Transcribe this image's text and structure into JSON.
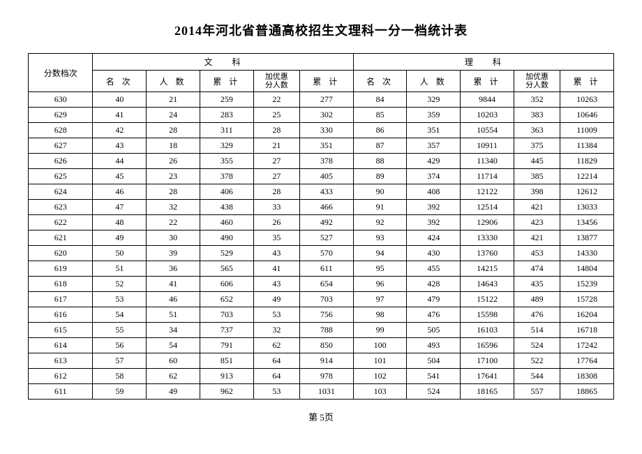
{
  "title": "2014年河北省普通高校招生文理科一分一档统计表",
  "page_label": "第 5页",
  "headers": {
    "score_bracket": "分数档次",
    "liberal": "文科",
    "science": "理科",
    "rank": "名 次",
    "count": "人 数",
    "cumulative": "累 计",
    "bonus_line1": "加优惠",
    "bonus_line2": "分人数",
    "cumulative2": "累 计"
  },
  "rows": [
    {
      "score": 630,
      "l_rank": 40,
      "l_cnt": 21,
      "l_cum": 259,
      "l_bonus": 22,
      "l_cum2": 277,
      "s_rank": 84,
      "s_cnt": 329,
      "s_cum": 9844,
      "s_bonus": 352,
      "s_cum2": 10263
    },
    {
      "score": 629,
      "l_rank": 41,
      "l_cnt": 24,
      "l_cum": 283,
      "l_bonus": 25,
      "l_cum2": 302,
      "s_rank": 85,
      "s_cnt": 359,
      "s_cum": 10203,
      "s_bonus": 383,
      "s_cum2": 10646
    },
    {
      "score": 628,
      "l_rank": 42,
      "l_cnt": 28,
      "l_cum": 311,
      "l_bonus": 28,
      "l_cum2": 330,
      "s_rank": 86,
      "s_cnt": 351,
      "s_cum": 10554,
      "s_bonus": 363,
      "s_cum2": 11009
    },
    {
      "score": 627,
      "l_rank": 43,
      "l_cnt": 18,
      "l_cum": 329,
      "l_bonus": 21,
      "l_cum2": 351,
      "s_rank": 87,
      "s_cnt": 357,
      "s_cum": 10911,
      "s_bonus": 375,
      "s_cum2": 11384
    },
    {
      "score": 626,
      "l_rank": 44,
      "l_cnt": 26,
      "l_cum": 355,
      "l_bonus": 27,
      "l_cum2": 378,
      "s_rank": 88,
      "s_cnt": 429,
      "s_cum": 11340,
      "s_bonus": 445,
      "s_cum2": 11829
    },
    {
      "score": 625,
      "l_rank": 45,
      "l_cnt": 23,
      "l_cum": 378,
      "l_bonus": 27,
      "l_cum2": 405,
      "s_rank": 89,
      "s_cnt": 374,
      "s_cum": 11714,
      "s_bonus": 385,
      "s_cum2": 12214
    },
    {
      "score": 624,
      "l_rank": 46,
      "l_cnt": 28,
      "l_cum": 406,
      "l_bonus": 28,
      "l_cum2": 433,
      "s_rank": 90,
      "s_cnt": 408,
      "s_cum": 12122,
      "s_bonus": 398,
      "s_cum2": 12612
    },
    {
      "score": 623,
      "l_rank": 47,
      "l_cnt": 32,
      "l_cum": 438,
      "l_bonus": 33,
      "l_cum2": 466,
      "s_rank": 91,
      "s_cnt": 392,
      "s_cum": 12514,
      "s_bonus": 421,
      "s_cum2": 13033
    },
    {
      "score": 622,
      "l_rank": 48,
      "l_cnt": 22,
      "l_cum": 460,
      "l_bonus": 26,
      "l_cum2": 492,
      "s_rank": 92,
      "s_cnt": 392,
      "s_cum": 12906,
      "s_bonus": 423,
      "s_cum2": 13456
    },
    {
      "score": 621,
      "l_rank": 49,
      "l_cnt": 30,
      "l_cum": 490,
      "l_bonus": 35,
      "l_cum2": 527,
      "s_rank": 93,
      "s_cnt": 424,
      "s_cum": 13330,
      "s_bonus": 421,
      "s_cum2": 13877
    },
    {
      "score": 620,
      "l_rank": 50,
      "l_cnt": 39,
      "l_cum": 529,
      "l_bonus": 43,
      "l_cum2": 570,
      "s_rank": 94,
      "s_cnt": 430,
      "s_cum": 13760,
      "s_bonus": 453,
      "s_cum2": 14330
    },
    {
      "score": 619,
      "l_rank": 51,
      "l_cnt": 36,
      "l_cum": 565,
      "l_bonus": 41,
      "l_cum2": 611,
      "s_rank": 95,
      "s_cnt": 455,
      "s_cum": 14215,
      "s_bonus": 474,
      "s_cum2": 14804
    },
    {
      "score": 618,
      "l_rank": 52,
      "l_cnt": 41,
      "l_cum": 606,
      "l_bonus": 43,
      "l_cum2": 654,
      "s_rank": 96,
      "s_cnt": 428,
      "s_cum": 14643,
      "s_bonus": 435,
      "s_cum2": 15239
    },
    {
      "score": 617,
      "l_rank": 53,
      "l_cnt": 46,
      "l_cum": 652,
      "l_bonus": 49,
      "l_cum2": 703,
      "s_rank": 97,
      "s_cnt": 479,
      "s_cum": 15122,
      "s_bonus": 489,
      "s_cum2": 15728
    },
    {
      "score": 616,
      "l_rank": 54,
      "l_cnt": 51,
      "l_cum": 703,
      "l_bonus": 53,
      "l_cum2": 756,
      "s_rank": 98,
      "s_cnt": 476,
      "s_cum": 15598,
      "s_bonus": 476,
      "s_cum2": 16204
    },
    {
      "score": 615,
      "l_rank": 55,
      "l_cnt": 34,
      "l_cum": 737,
      "l_bonus": 32,
      "l_cum2": 788,
      "s_rank": 99,
      "s_cnt": 505,
      "s_cum": 16103,
      "s_bonus": 514,
      "s_cum2": 16718
    },
    {
      "score": 614,
      "l_rank": 56,
      "l_cnt": 54,
      "l_cum": 791,
      "l_bonus": 62,
      "l_cum2": 850,
      "s_rank": 100,
      "s_cnt": 493,
      "s_cum": 16596,
      "s_bonus": 524,
      "s_cum2": 17242
    },
    {
      "score": 613,
      "l_rank": 57,
      "l_cnt": 60,
      "l_cum": 851,
      "l_bonus": 64,
      "l_cum2": 914,
      "s_rank": 101,
      "s_cnt": 504,
      "s_cum": 17100,
      "s_bonus": 522,
      "s_cum2": 17764
    },
    {
      "score": 612,
      "l_rank": 58,
      "l_cnt": 62,
      "l_cum": 913,
      "l_bonus": 64,
      "l_cum2": 978,
      "s_rank": 102,
      "s_cnt": 541,
      "s_cum": 17641,
      "s_bonus": 544,
      "s_cum2": 18308
    },
    {
      "score": 611,
      "l_rank": 59,
      "l_cnt": 49,
      "l_cum": 962,
      "l_bonus": 53,
      "l_cum2": 1031,
      "s_rank": 103,
      "s_cnt": 524,
      "s_cum": 18165,
      "s_bonus": 557,
      "s_cum2": 18865
    }
  ]
}
